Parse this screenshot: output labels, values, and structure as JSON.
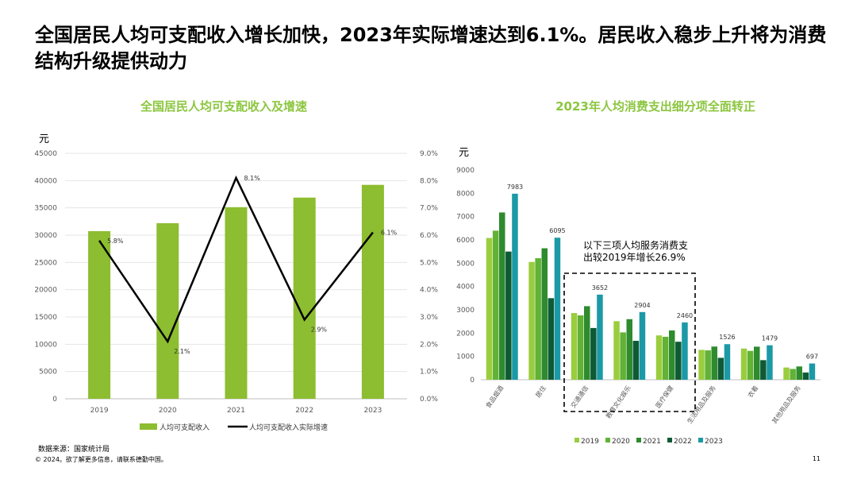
{
  "slide": {
    "title": "全国居民人均可支配收入增长加快，2023年实际增速达到6.1%。居民收入稳步上升将为消费结构升级提供动力",
    "source": "数据来源：国家统计局",
    "copyright": "© 2024。欲了解更多信息，请联系德勤中国。",
    "page_number": "11"
  },
  "colors": {
    "accent_title": "#8cc63f",
    "bar_income": "#8dbd30",
    "line_growth": "#000000",
    "s2019": "#9acd3e",
    "s2020": "#62b235",
    "s2021": "#2e8b2e",
    "s2022": "#0e5a35",
    "s2023": "#1b9aa6"
  },
  "chart_data": [
    {
      "type": "bar",
      "title": "全国居民人均可支配收入及增速",
      "unit_label": "元",
      "categories": [
        "2019",
        "2020",
        "2021",
        "2022",
        "2023"
      ],
      "series": [
        {
          "name": "人均可支配收入",
          "type": "bar",
          "axis": "left",
          "values": [
            30733,
            32189,
            35128,
            36883,
            39218
          ]
        },
        {
          "name": "人均可支配收入实际增速",
          "type": "line",
          "axis": "right",
          "values": [
            5.8,
            2.1,
            8.1,
            2.9,
            6.1
          ],
          "labels": [
            "5.8%",
            "2.1%",
            "8.1%",
            "2.9%",
            "6.1%"
          ]
        }
      ],
      "y_left": {
        "min": 0,
        "max": 45000,
        "ticks": [
          "0",
          "5000",
          "10000",
          "15000",
          "20000",
          "25000",
          "30000",
          "35000",
          "40000",
          "45000"
        ]
      },
      "y_right": {
        "min": 0,
        "max": 9,
        "ticks": [
          "0.0%",
          "1.0%",
          "2.0%",
          "3.0%",
          "4.0%",
          "5.0%",
          "6.0%",
          "7.0%",
          "8.0%",
          "9.0%"
        ]
      },
      "grid": true,
      "legend": "bottom"
    },
    {
      "type": "bar",
      "title": "2023年人均消费支出细分项全面转正",
      "unit_label": "元",
      "categories": [
        "食品烟酒",
        "居住",
        "交通通信",
        "教育文化娱乐",
        "医疗保健",
        "生活用品及服务",
        "衣着",
        "其他用品及服务"
      ],
      "series": [
        {
          "name": "2019",
          "values": [
            6084,
            5055,
            2862,
            2513,
            1902,
            1281,
            1338,
            524
          ]
        },
        {
          "name": "2020",
          "values": [
            6397,
            5215,
            2762,
            2032,
            1843,
            1260,
            1238,
            462
          ]
        },
        {
          "name": "2021",
          "values": [
            7178,
            5641,
            3156,
            2599,
            2115,
            1423,
            1419,
            569
          ]
        },
        {
          "name": "2022",
          "values": [
            5500,
            3500,
            2220,
            1670,
            1630,
            940,
            840,
            310
          ]
        },
        {
          "name": "2023",
          "values": [
            7983,
            6095,
            3652,
            2904,
            2460,
            1526,
            1479,
            697
          ]
        }
      ],
      "data_labels": [
        "7983",
        "6095",
        "3652",
        "2904",
        "2460",
        "1526",
        "1479",
        "697"
      ],
      "y": {
        "min": 0,
        "max": 9000,
        "ticks": [
          "0",
          "1000",
          "2000",
          "3000",
          "4000",
          "5000",
          "6000",
          "7000",
          "8000",
          "9000"
        ]
      },
      "annotation": "以下三项人均服务消费支出较2019年增长26.9%",
      "grid": false,
      "legend": "bottom"
    }
  ]
}
